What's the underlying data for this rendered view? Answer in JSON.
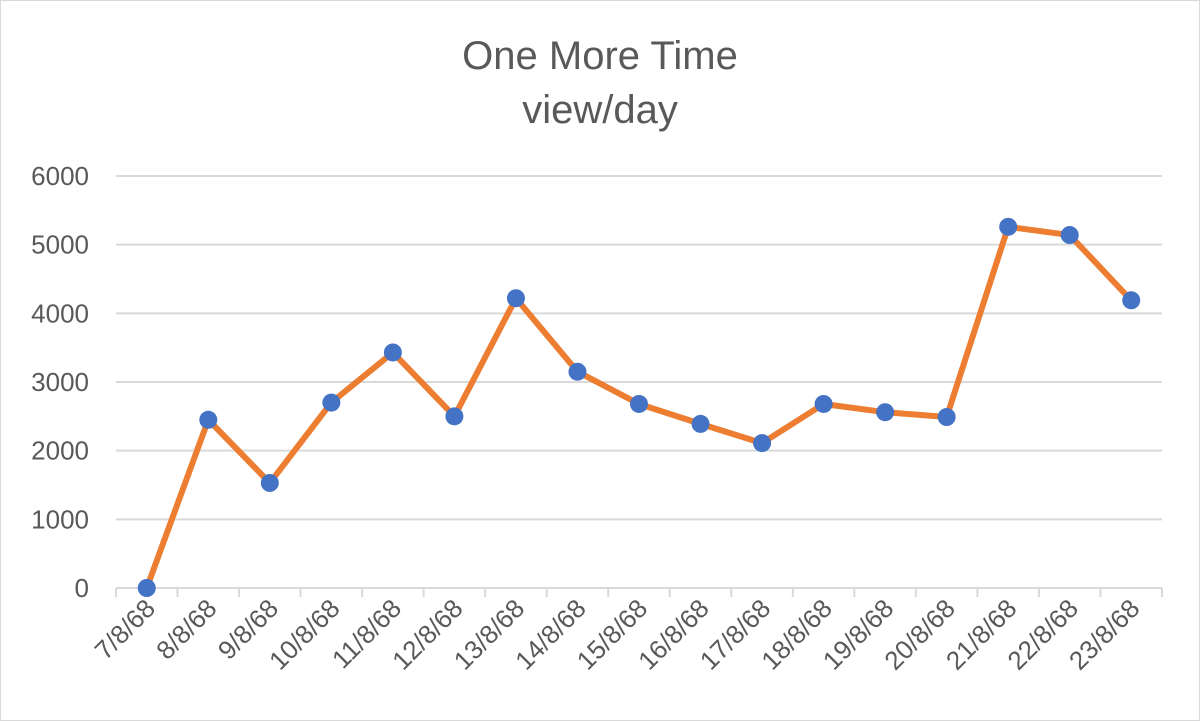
{
  "chart_data": {
    "type": "line",
    "title_lines": [
      "One More Time",
      "view/day"
    ],
    "xlabel": "",
    "ylabel": "",
    "categories": [
      "7/8/68",
      "8/8/68",
      "9/8/68",
      "10/8/68",
      "11/8/68",
      "12/8/68",
      "13/8/68",
      "14/8/68",
      "15/8/68",
      "16/8/68",
      "17/8/68",
      "18/8/68",
      "19/8/68",
      "20/8/68",
      "21/8/68",
      "22/8/68",
      "23/8/68"
    ],
    "series": [
      {
        "values": [
          0,
          2450,
          1530,
          2700,
          3430,
          2500,
          4220,
          3150,
          2680,
          2390,
          2110,
          2680,
          2560,
          2490,
          5260,
          5140,
          4190
        ]
      }
    ],
    "ylim": [
      0,
      6000
    ],
    "yticks": [
      0,
      1000,
      2000,
      3000,
      4000,
      5000,
      6000
    ],
    "grid": true,
    "legend": "none",
    "colors": {
      "line": "#ED7D31",
      "marker": "#4472C4",
      "grid": "#d9d9d9",
      "text": "#595959"
    }
  }
}
